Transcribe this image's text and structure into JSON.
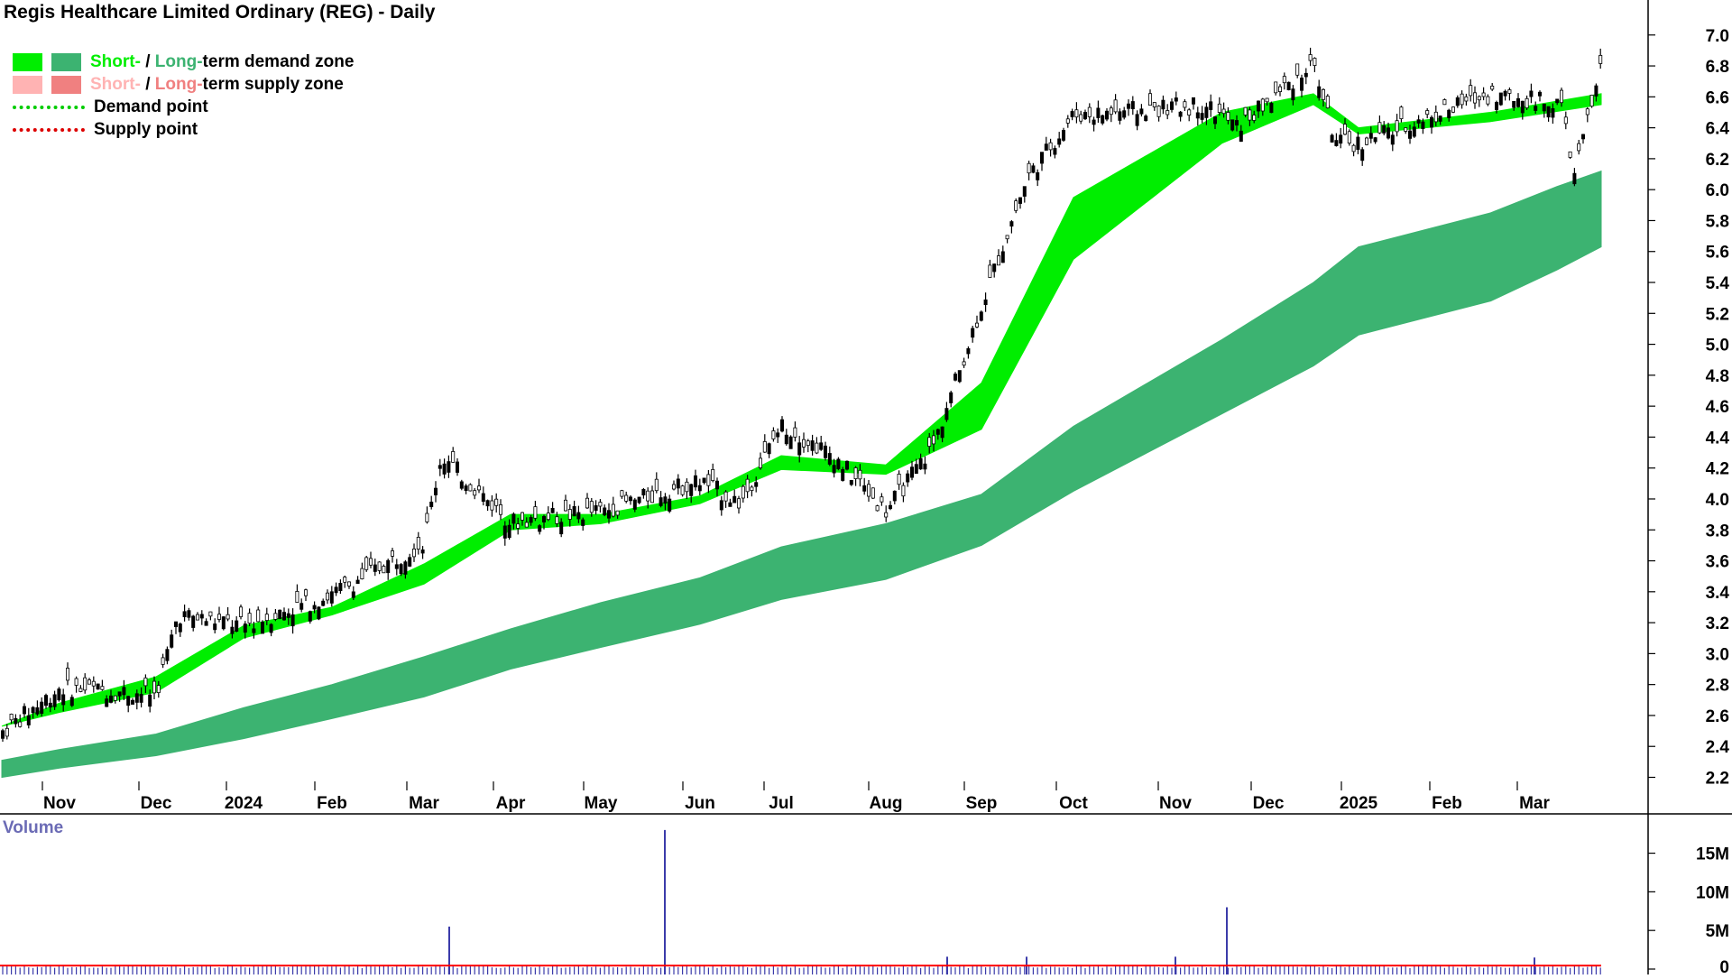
{
  "title": "Regis Healthcare Limited Ordinary (REG) - Daily",
  "legend": {
    "short_word": "Short-",
    "long_word": "Long-",
    "separator": " / ",
    "demand_zone_tail": "term demand zone",
    "supply_zone_tail": "term supply zone",
    "demand_point": "Demand point",
    "supply_point": "Supply point"
  },
  "colors": {
    "short_demand": "#00ee00",
    "long_demand": "#3cb371",
    "short_supply": "#ffb3b3",
    "long_supply": "#f08080",
    "demand_point": "#00cc00",
    "supply_point": "#dd0000",
    "supply_transition": "#ff7f3f",
    "volume_bars": "#3b3baa",
    "volume_avg": "#ff0000"
  },
  "volume_label": "Volume",
  "chart_data": [
    {
      "type": "candlestick",
      "title": "Regis Healthcare Limited Ordinary (REG) - Daily",
      "x_ticks": [
        "Nov",
        "Dec",
        "2024",
        "Feb",
        "Mar",
        "Apr",
        "May",
        "Jun",
        "Jul",
        "Aug",
        "Sep",
        "Oct",
        "Nov",
        "Dec",
        "2025",
        "Feb",
        "Mar"
      ],
      "y_ticks": [
        "2.2",
        "2.4",
        "2.6",
        "2.8",
        "3.0",
        "3.2",
        "3.4",
        "3.6",
        "3.8",
        "4.0",
        "4.2",
        "4.4",
        "4.6",
        "4.8",
        "5.0",
        "5.2",
        "5.4",
        "5.6",
        "5.8",
        "6.0",
        "6.2",
        "6.4",
        "6.6",
        "6.8",
        "7.0"
      ],
      "ylim": [
        2.1,
        7.1
      ],
      "grid": false,
      "legend_position": "top-left",
      "price_path": [
        [
          "Oct",
          2.49
        ],
        [
          "Nov",
          2.78
        ],
        [
          "Dec",
          2.74
        ],
        [
          "Dec",
          3.25
        ],
        [
          "2024",
          3.18
        ],
        [
          "Feb",
          3.38
        ],
        [
          "Mar",
          3.72
        ],
        [
          "Mar",
          4.28
        ],
        [
          "Apr",
          3.85
        ],
        [
          "May",
          3.92
        ],
        [
          "Jun",
          4.12
        ],
        [
          "Jun",
          3.97
        ],
        [
          "Jul",
          4.48
        ],
        [
          "Jul",
          4.28
        ],
        [
          "Aug",
          3.92
        ],
        [
          "Aug",
          4.35
        ],
        [
          "Sep",
          5.25
        ],
        [
          "Sep",
          6.08
        ],
        [
          "Oct",
          6.48
        ],
        [
          "Nov",
          6.55
        ],
        [
          "Nov",
          6.4
        ],
        [
          "Dec",
          6.82
        ],
        [
          "Dec",
          6.3
        ],
        [
          "2025",
          6.3
        ],
        [
          "Feb",
          6.62
        ],
        [
          "Mar",
          6.55
        ],
        [
          "Mar",
          6.1
        ],
        [
          "Mar",
          6.8
        ]
      ],
      "short_term_zone": [
        [
          "Oct",
          2.53,
          2.53
        ],
        [
          "Nov",
          2.68,
          2.62
        ],
        [
          "Dec",
          2.85,
          2.75
        ],
        [
          "2024",
          3.18,
          3.1
        ],
        [
          "Feb",
          3.3,
          3.25
        ],
        [
          "Mar",
          3.58,
          3.45
        ],
        [
          "Apr",
          3.9,
          3.8
        ],
        [
          "May",
          3.9,
          3.84
        ],
        [
          "Jun",
          4.02,
          3.97
        ],
        [
          "Jul",
          4.28,
          4.19
        ],
        [
          "Aug",
          4.22,
          4.16
        ],
        [
          "Sep",
          4.75,
          4.45
        ],
        [
          "Oct",
          5.95,
          5.55
        ],
        [
          "Nov",
          6.5,
          6.3
        ],
        [
          "Dec",
          6.62,
          6.55
        ],
        [
          "2025",
          6.4,
          6.36
        ],
        [
          "Feb",
          6.5,
          6.44
        ],
        [
          "Mar",
          6.62,
          6.55
        ]
      ],
      "long_term_zone": [
        [
          "Oct",
          2.31,
          2.2
        ],
        [
          "Nov",
          2.38,
          2.26
        ],
        [
          "Dec",
          2.48,
          2.34
        ],
        [
          "2024",
          2.65,
          2.45
        ],
        [
          "Feb",
          2.8,
          2.58
        ],
        [
          "Mar",
          2.98,
          2.72
        ],
        [
          "Apr",
          3.16,
          2.9
        ],
        [
          "May",
          3.33,
          3.04
        ],
        [
          "Jun",
          3.49,
          3.19
        ],
        [
          "Jul",
          3.69,
          3.35
        ],
        [
          "Aug",
          3.84,
          3.48
        ],
        [
          "Sep",
          4.03,
          3.7
        ],
        [
          "Oct",
          4.47,
          4.05
        ],
        [
          "Nov",
          5.03,
          4.55
        ],
        [
          "Dec",
          5.4,
          4.86
        ],
        [
          "2025",
          5.63,
          5.06
        ],
        [
          "Feb",
          5.85,
          5.28
        ],
        [
          "Mar",
          6.02,
          5.48
        ],
        [
          "Mar",
          6.12,
          5.63
        ]
      ]
    },
    {
      "type": "bar",
      "title": "Volume",
      "y_ticks": [
        "0",
        "5M",
        "10M",
        "15M"
      ],
      "ylim": [
        0,
        19
      ],
      "typical_value_m": 0.3,
      "spikes_m": [
        [
          "Mar",
          5.5
        ],
        [
          "May",
          18.0
        ],
        [
          "Sep",
          1.6
        ],
        [
          "Oct",
          1.6
        ],
        [
          "Nov",
          1.6
        ],
        [
          "Dec",
          8.0
        ],
        [
          "Mar",
          1.5
        ]
      ]
    }
  ]
}
